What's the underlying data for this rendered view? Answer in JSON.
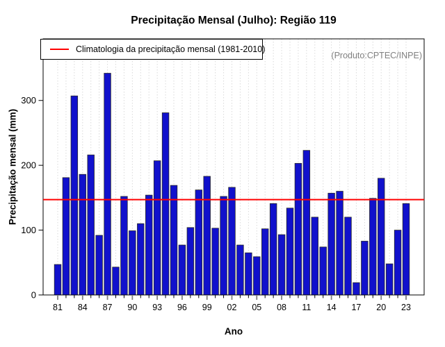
{
  "colors": {
    "bar_fill": "#1111cc",
    "bar_border": "#2b2b2b",
    "climatology_line": "#ff0000",
    "gridline": "#d9d9d9",
    "frame": "#000000",
    "major_tick": "#808080",
    "watermark_text": "#808080"
  },
  "chart_data": {
    "type": "bar",
    "title": "Precipitação Mensal (Julho): Região 119",
    "xlabel": "Ano",
    "ylabel": "Precipitação mensal (mm)",
    "categories": [
      "81",
      "82",
      "83",
      "84",
      "85",
      "86",
      "87",
      "88",
      "89",
      "90",
      "91",
      "92",
      "93",
      "94",
      "95",
      "96",
      "97",
      "98",
      "99",
      "00",
      "01",
      "02",
      "03",
      "04",
      "05",
      "06",
      "07",
      "08",
      "09",
      "10",
      "11",
      "12",
      "13",
      "14",
      "15",
      "16",
      "17",
      "18",
      "19",
      "20",
      "21",
      "22",
      "23"
    ],
    "values": [
      47,
      181,
      307,
      186,
      216,
      92,
      342,
      43,
      152,
      99,
      110,
      154,
      207,
      281,
      169,
      77,
      104,
      162,
      183,
      103,
      152,
      166,
      77,
      65,
      59,
      102,
      141,
      93,
      134,
      203,
      223,
      120,
      74,
      157,
      160,
      120,
      19,
      83,
      149,
      180,
      48,
      100,
      141
    ],
    "x_tick_labels": [
      "81",
      "84",
      "87",
      "90",
      "93",
      "96",
      "99",
      "02",
      "05",
      "08",
      "11",
      "14",
      "17",
      "20",
      "23"
    ],
    "yticks": [
      0,
      100,
      200,
      300
    ],
    "ylim": [
      0,
      395
    ],
    "grid": "vertical-dashed-per-year",
    "legend_position": "top-left-inside",
    "climatology": {
      "label": "Climatologia da precipitação mensal (1981-2010)",
      "value": 147
    },
    "annotation": "(Produto:CPTEC/INPE)"
  }
}
